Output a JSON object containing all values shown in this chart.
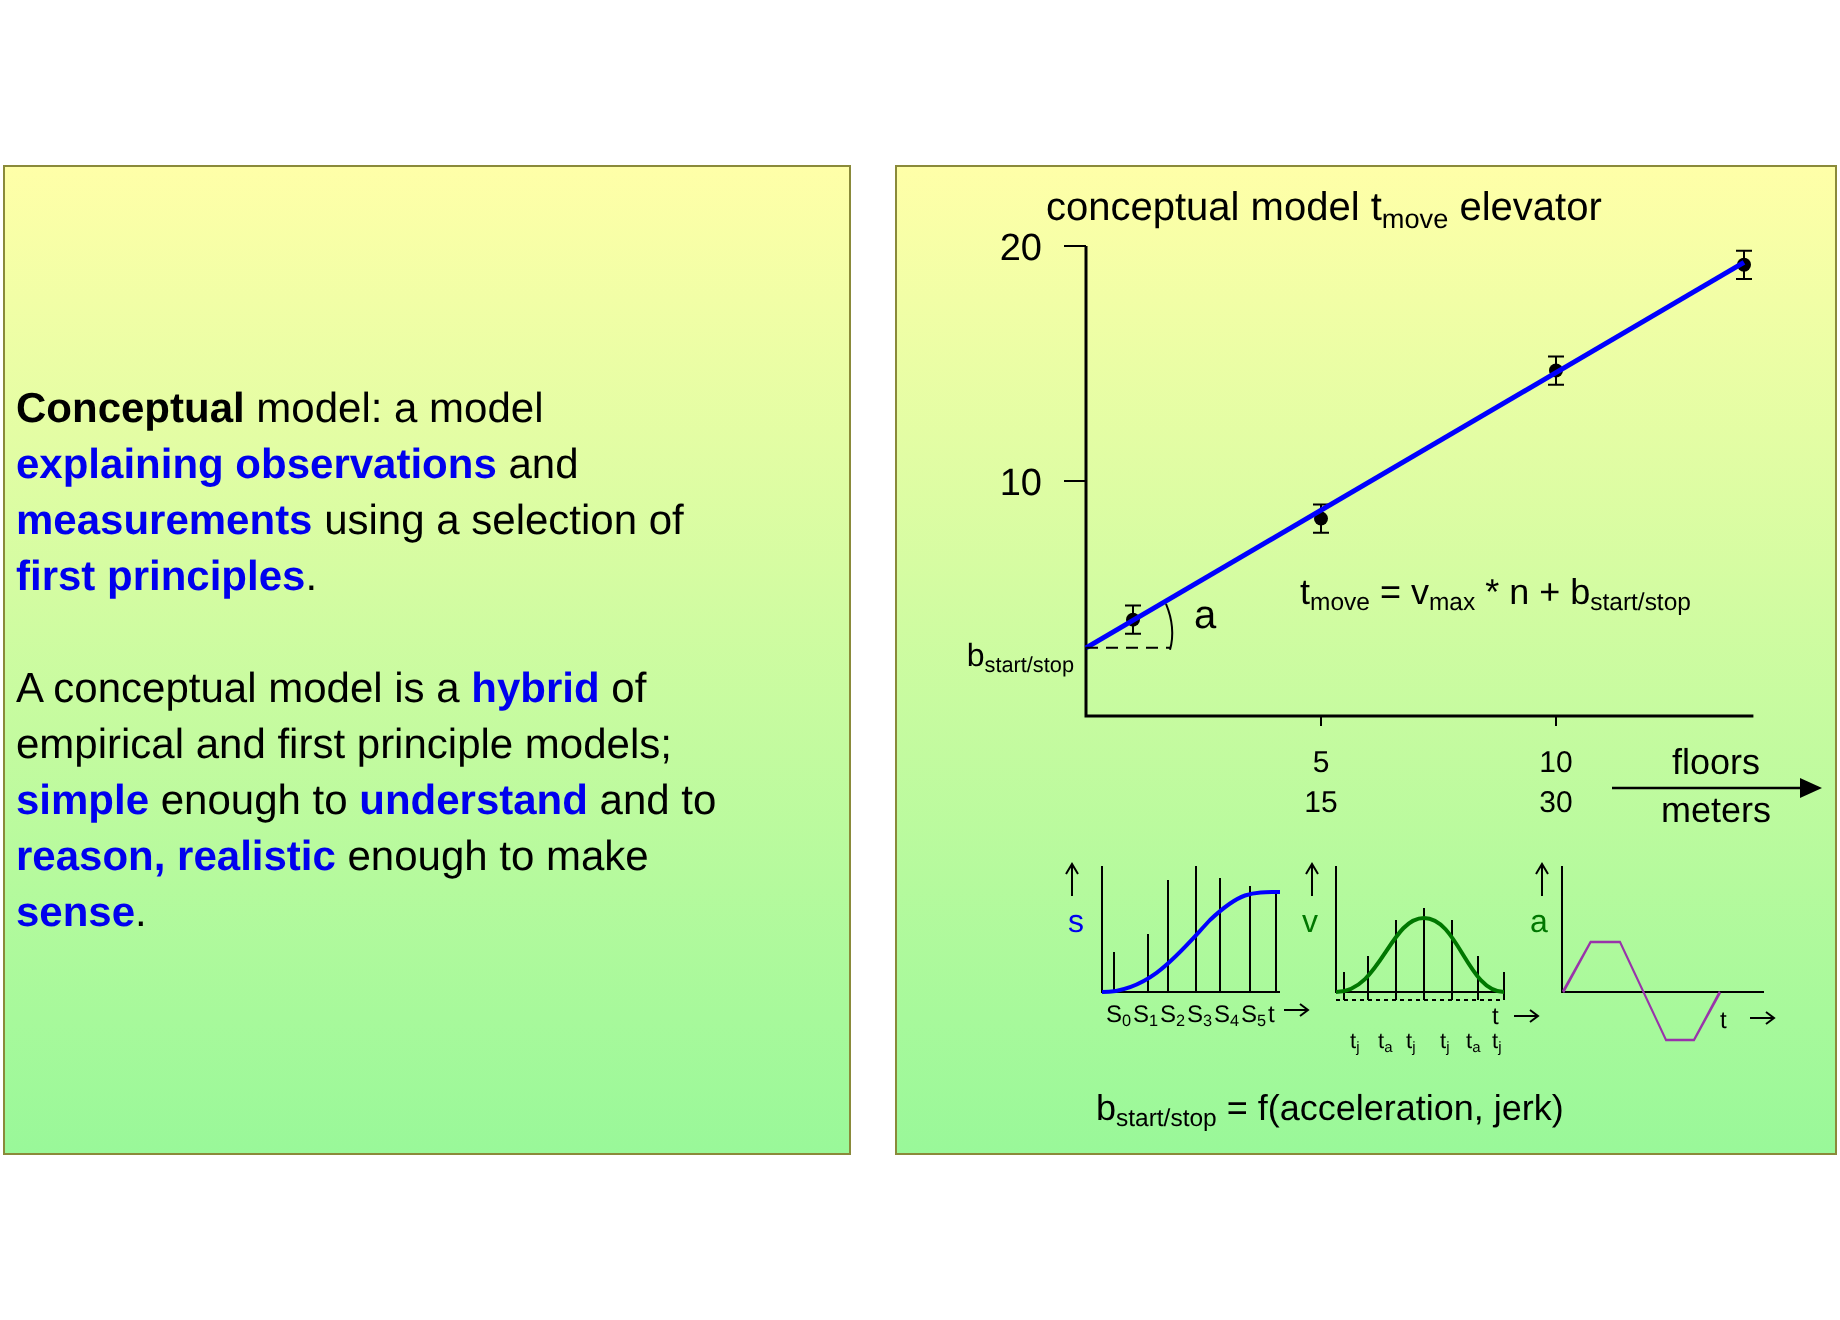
{
  "chart_data": [
    {
      "type": "other",
      "annotations": [
        "Conceptual",
        " model: a model",
        "explaining observations",
        " and",
        "measurements",
        " using a selection of",
        "first principles",
        ".",
        "A conceptual model is a ",
        "hybrid",
        " of",
        "empirical and first principle models;",
        "simple",
        " enough to ",
        "understand",
        " and to",
        "reason, realistic",
        " enough to make",
        "sense",
        "."
      ]
    },
    {
      "type": "scatter",
      "title": "conceptual model t$_{move}$ elevator",
      "xlabel": "floors",
      "x2label": "meters",
      "xlim": [
        0,
        14.2
      ],
      "ylim": [
        0,
        20
      ],
      "x2lim": [
        0,
        42.6
      ],
      "xticks": [
        5,
        10
      ],
      "x2ticks": [
        15,
        30
      ],
      "yticks": [
        10,
        20
      ],
      "series": [
        {
          "type": "scatter",
          "color": "#000000",
          "marker": "circle",
          "x": [
            1,
            5,
            10,
            14
          ],
          "values": [
            4.1,
            8.4,
            14.7,
            19.2
          ],
          "errors": [
            0.6,
            0.6,
            0.6,
            0.6
          ]
        },
        {
          "type": "line",
          "color": "#0000ff",
          "marker": "none",
          "x": [
            0,
            14
          ],
          "values": [
            2.9,
            19.3
          ]
        }
      ],
      "annotations": [
        {
          "text": "b$_{start/stop}$",
          "x": 0,
          "y": 2.9
        },
        "a",
        "t$_{move}$ = v$_{max}$ * n + b$_{start/stop}$",
        "b$_{start/stop}$ = f(acceleration, jerk)",
        "s",
        "v",
        "a",
        "S$_{0}$",
        "S$_{1}$",
        "S$_{2}$",
        "S$_{3}$",
        "S$_{4}$",
        "S$_{5}$",
        "t",
        "t",
        "t",
        "t$_{j}$",
        "t$_{a}$",
        "t$_{j}$",
        "t$_{j}$",
        "t$_{a}$",
        "t$_{j}$"
      ]
    }
  ]
}
